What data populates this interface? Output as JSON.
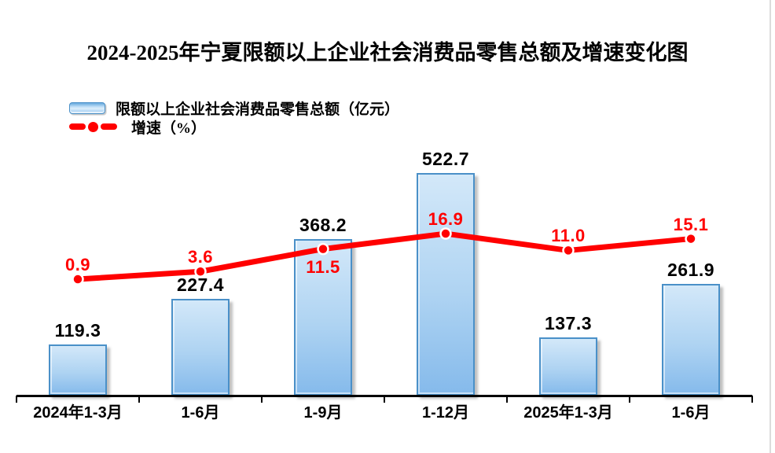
{
  "title": "2024-2025年宁夏限额以上企业社会消费品零售总额及增速变化图",
  "legend": {
    "bar_label": "限额以上企业社会消费品零售总额（亿元）",
    "line_label": "增速（%）"
  },
  "chart_data": {
    "type": "bar",
    "subtype": "bar-line-combo",
    "title": "2024-2025年宁夏限额以上企业社会消费品零售总额及增速变化图",
    "categories": [
      "2024年1-3月",
      "1-6月",
      "1-9月",
      "1-12月",
      "2025年1-3月",
      "1-6月"
    ],
    "series": [
      {
        "name": "限额以上企业社会消费品零售总额（亿元）",
        "type": "bar",
        "unit": "亿元",
        "values": [
          119.3,
          227.4,
          368.2,
          522.7,
          137.3,
          261.9
        ]
      },
      {
        "name": "增速（%）",
        "type": "line",
        "unit": "%",
        "values": [
          0.9,
          3.6,
          11.5,
          16.9,
          11.0,
          15.1
        ],
        "label_positions": [
          "above",
          "above",
          "below",
          "above",
          "above",
          "above"
        ]
      }
    ],
    "xlabel": "",
    "ylabel": "",
    "grid": false,
    "legend_position": "top-left",
    "colors": {
      "bar_fill_top": "#d3e8f9",
      "bar_fill_bottom": "#85baeb",
      "bar_border": "#4a90c8",
      "line": "#ff0000",
      "label": "#000000"
    }
  }
}
